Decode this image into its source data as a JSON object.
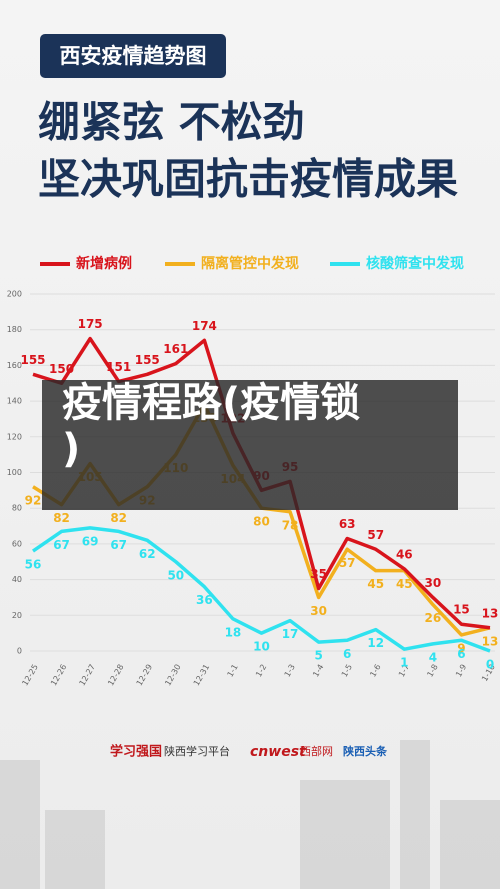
{
  "header": {
    "tag": "西安疫情趋势图",
    "title_lines": [
      "绷紧弦  不松劲",
      "坚决巩固抗击疫情成果"
    ]
  },
  "chart_data": {
    "type": "line",
    "categories": [
      "12-25",
      "12-26",
      "12-27",
      "12-28",
      "12-29",
      "12-30",
      "12-31",
      "1-1",
      "1-2",
      "1-3",
      "1-4",
      "1-5",
      "1-6",
      "1-7",
      "1-8",
      "1-9",
      "1-10"
    ],
    "series": [
      {
        "name": "新增病例",
        "color": "#d8141c",
        "values": [
          155,
          150,
          175,
          151,
          155,
          161,
          174,
          122,
          90,
          95,
          35,
          63,
          57,
          46,
          30,
          15,
          13
        ]
      },
      {
        "name": "隔离管控中发现",
        "color": "#f2b01e",
        "values": [
          92,
          82,
          105,
          82,
          92,
          110,
          138,
          104,
          80,
          78,
          30,
          57,
          45,
          45,
          26,
          9,
          13
        ]
      },
      {
        "name": "核酸筛查中发现",
        "color": "#2fe2ef",
        "values": [
          56,
          67,
          69,
          67,
          62,
          50,
          36,
          18,
          10,
          17,
          5,
          6,
          12,
          1,
          4,
          6,
          0
        ]
      }
    ],
    "ylim": [
      0,
      200
    ],
    "yticks": [
      0,
      20,
      40,
      60,
      80,
      100,
      120,
      140,
      160,
      180,
      200
    ],
    "grid": true
  },
  "overlay": {
    "lines": [
      "疫情程路(疫情锁",
      ")"
    ]
  },
  "footer": {
    "logos": [
      "学习强国",
      "陕西学习平台",
      "cnwest",
      "西部网",
      "陕西头条"
    ]
  }
}
